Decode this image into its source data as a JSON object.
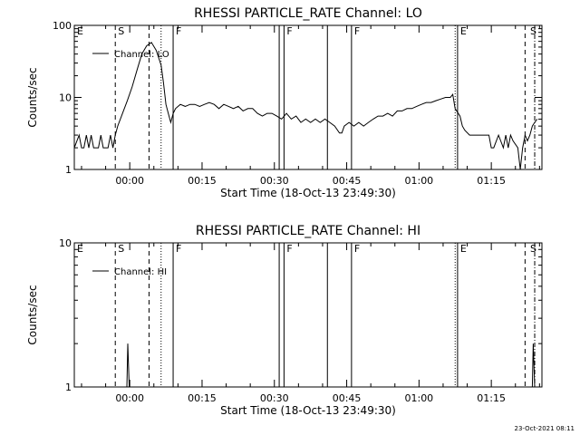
{
  "chart_data": [
    {
      "type": "line",
      "title": "RHESSI PARTICLE_RATE Channel: LO",
      "xlabel": "Start Time (18-Oct-13 23:49:30)",
      "ylabel": "Counts/sec",
      "yscale": "log",
      "ylim": [
        1,
        100
      ],
      "x_units": "minutes after start time",
      "xlim": [
        -1,
        96
      ],
      "x_ticks": [
        {
          "value": 10.5,
          "label": "00:00"
        },
        {
          "value": 25.5,
          "label": "00:15"
        },
        {
          "value": 40.5,
          "label": "00:30"
        },
        {
          "value": 55.5,
          "label": "00:45"
        },
        {
          "value": 70.5,
          "label": "01:00"
        },
        {
          "value": 85.5,
          "label": "01:15"
        }
      ],
      "y_ticks": [
        {
          "value": 1,
          "label": "1"
        },
        {
          "value": 10,
          "label": "10"
        },
        {
          "value": 100,
          "label": "100"
        }
      ],
      "legend": {
        "position": "top-left",
        "entries": [
          "Channel: LO"
        ]
      },
      "markers": [
        {
          "label": "E",
          "x": -1,
          "style": "none"
        },
        {
          "label": "S",
          "x": 7.5,
          "style": "dashed"
        },
        {
          "label": "",
          "x": 14.5,
          "style": "dashed"
        },
        {
          "label": "",
          "x": 17,
          "style": "dotted"
        },
        {
          "label": "F",
          "x": 19.5,
          "style": "solid"
        },
        {
          "label": "",
          "x": 41.5,
          "style": "solid"
        },
        {
          "label": "F",
          "x": 42.5,
          "style": "solid"
        },
        {
          "label": "",
          "x": 51.5,
          "style": "solid"
        },
        {
          "label": "F",
          "x": 56.5,
          "style": "solid"
        },
        {
          "label": "",
          "x": 78,
          "style": "dotted"
        },
        {
          "label": "E",
          "x": 78.5,
          "style": "solid"
        },
        {
          "label": "",
          "x": 92.5,
          "style": "dashed"
        },
        {
          "label": "S",
          "x": 93,
          "style": "none"
        },
        {
          "label": "",
          "x": 94.5,
          "style": "dashdot"
        }
      ],
      "series": [
        {
          "name": "Channel: LO",
          "points": [
            [
              -1,
              2
            ],
            [
              0,
              3
            ],
            [
              0.5,
              2
            ],
            [
              1,
              2
            ],
            [
              1.5,
              3
            ],
            [
              2,
              2
            ],
            [
              2.5,
              3
            ],
            [
              3,
              2
            ],
            [
              4,
              2
            ],
            [
              4.5,
              3
            ],
            [
              5,
              2
            ],
            [
              6,
              2
            ],
            [
              6.5,
              3
            ],
            [
              7,
              2
            ],
            [
              7.5,
              3
            ],
            [
              8,
              4
            ],
            [
              9,
              6
            ],
            [
              10,
              9
            ],
            [
              11,
              14
            ],
            [
              12,
              24
            ],
            [
              13,
              40
            ],
            [
              14,
              52
            ],
            [
              15,
              58
            ],
            [
              16,
              45
            ],
            [
              17,
              28
            ],
            [
              17.5,
              16
            ],
            [
              18,
              8
            ],
            [
              18.5,
              6
            ],
            [
              19,
              4.5
            ],
            [
              19.5,
              6
            ],
            [
              20,
              7
            ],
            [
              21,
              8
            ],
            [
              22,
              7.5
            ],
            [
              23,
              8
            ],
            [
              24,
              8
            ],
            [
              25,
              7.5
            ],
            [
              26,
              8
            ],
            [
              27,
              8.5
            ],
            [
              28,
              8
            ],
            [
              29,
              7
            ],
            [
              30,
              8
            ],
            [
              31,
              7.5
            ],
            [
              32,
              7
            ],
            [
              33,
              7.5
            ],
            [
              34,
              6.5
            ],
            [
              35,
              7
            ],
            [
              36,
              7
            ],
            [
              37,
              6
            ],
            [
              38,
              5.5
            ],
            [
              39,
              6
            ],
            [
              40,
              6
            ],
            [
              41,
              5.5
            ],
            [
              42,
              5
            ],
            [
              43,
              6
            ],
            [
              44,
              5
            ],
            [
              45,
              5.5
            ],
            [
              46,
              4.5
            ],
            [
              47,
              5
            ],
            [
              48,
              4.5
            ],
            [
              49,
              5
            ],
            [
              50,
              4.5
            ],
            [
              51,
              5
            ],
            [
              52,
              4.5
            ],
            [
              53,
              4
            ],
            [
              54,
              3.2
            ],
            [
              54.5,
              3.2
            ],
            [
              55,
              4
            ],
            [
              56,
              4.5
            ],
            [
              57,
              4
            ],
            [
              58,
              4.5
            ],
            [
              59,
              4
            ],
            [
              60,
              4.5
            ],
            [
              61,
              5
            ],
            [
              62,
              5.5
            ],
            [
              63,
              5.5
            ],
            [
              64,
              6
            ],
            [
              65,
              5.5
            ],
            [
              66,
              6.5
            ],
            [
              67,
              6.5
            ],
            [
              68,
              7
            ],
            [
              69,
              7
            ],
            [
              70,
              7.5
            ],
            [
              71,
              8
            ],
            [
              72,
              8.5
            ],
            [
              73,
              8.5
            ],
            [
              74,
              9
            ],
            [
              75,
              9.5
            ],
            [
              76,
              10
            ],
            [
              77,
              10
            ],
            [
              77.5,
              11
            ],
            [
              78,
              7
            ],
            [
              79,
              5.5
            ],
            [
              79.5,
              4
            ],
            [
              80,
              3.5
            ],
            [
              81,
              3
            ],
            [
              82,
              3
            ],
            [
              83,
              3
            ],
            [
              84,
              3
            ],
            [
              85,
              3
            ],
            [
              85.5,
              2
            ],
            [
              86,
              2
            ],
            [
              87,
              3
            ],
            [
              88,
              2
            ],
            [
              88.5,
              3
            ],
            [
              89,
              2
            ],
            [
              89.5,
              3
            ],
            [
              90,
              2.5
            ],
            [
              91,
              2
            ],
            [
              91.5,
              1
            ],
            [
              92,
              2
            ],
            [
              92.5,
              3
            ],
            [
              93,
              2.5
            ],
            [
              93.5,
              3
            ],
            [
              94,
              4
            ],
            [
              94.5,
              4.5
            ],
            [
              95,
              5
            ]
          ]
        }
      ]
    },
    {
      "type": "line",
      "title": "RHESSI PARTICLE_RATE Channel: HI",
      "xlabel": "Start Time (18-Oct-13 23:49:30)",
      "ylabel": "Counts/sec",
      "yscale": "log",
      "ylim": [
        1,
        10
      ],
      "x_units": "minutes after start time",
      "xlim": [
        -1,
        96
      ],
      "x_ticks": [
        {
          "value": 10.5,
          "label": "00:00"
        },
        {
          "value": 25.5,
          "label": "00:15"
        },
        {
          "value": 40.5,
          "label": "00:30"
        },
        {
          "value": 55.5,
          "label": "00:45"
        },
        {
          "value": 70.5,
          "label": "01:00"
        },
        {
          "value": 85.5,
          "label": "01:15"
        }
      ],
      "y_ticks": [
        {
          "value": 1,
          "label": "1"
        },
        {
          "value": 10,
          "label": "10"
        }
      ],
      "legend": {
        "position": "top-left",
        "entries": [
          "Channel: HI"
        ]
      },
      "markers": [
        {
          "label": "E",
          "x": -1,
          "style": "none"
        },
        {
          "label": "S",
          "x": 7.5,
          "style": "dashed"
        },
        {
          "label": "",
          "x": 14.5,
          "style": "dashed"
        },
        {
          "label": "",
          "x": 17,
          "style": "dotted"
        },
        {
          "label": "F",
          "x": 19.5,
          "style": "solid"
        },
        {
          "label": "",
          "x": 41.5,
          "style": "solid"
        },
        {
          "label": "F",
          "x": 42.5,
          "style": "solid"
        },
        {
          "label": "",
          "x": 51.5,
          "style": "solid"
        },
        {
          "label": "F",
          "x": 56.5,
          "style": "solid"
        },
        {
          "label": "",
          "x": 78,
          "style": "dotted"
        },
        {
          "label": "E",
          "x": 78.5,
          "style": "solid"
        },
        {
          "label": "",
          "x": 92.5,
          "style": "dashed"
        },
        {
          "label": "S",
          "x": 93,
          "style": "none"
        },
        {
          "label": "",
          "x": 94.5,
          "style": "dashdot"
        }
      ],
      "series": [
        {
          "name": "Channel: HI",
          "points": [
            [
              9.9,
              1
            ],
            [
              10.1,
              2
            ],
            [
              10.4,
              1
            ],
            [
              94.0,
              1
            ],
            [
              94.2,
              2
            ],
            [
              94.5,
              1
            ]
          ]
        }
      ]
    }
  ],
  "timestamp": "23-Oct-2021 08:11"
}
